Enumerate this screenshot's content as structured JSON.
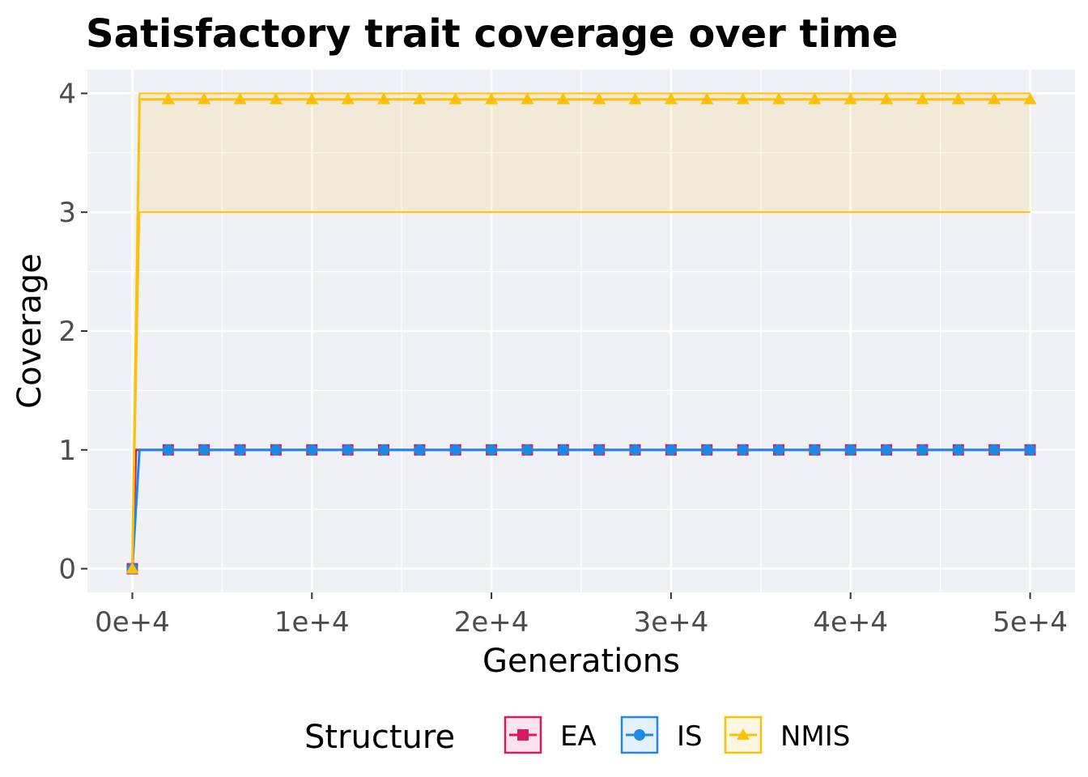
{
  "chart_data": {
    "type": "line",
    "title": "Satisfactory trait coverage over time",
    "xlabel": "Generations",
    "ylabel": "Coverage",
    "xlim": [
      -2500,
      52500
    ],
    "ylim": [
      -0.2,
      4.2
    ],
    "x_ticks": [
      0,
      10000,
      20000,
      30000,
      40000,
      50000
    ],
    "x_tick_labels": [
      "0e+4",
      "1e+4",
      "2e+4",
      "3e+4",
      "4e+4",
      "5e+4"
    ],
    "y_ticks": [
      0,
      1,
      2,
      3,
      4
    ],
    "y_tick_labels": [
      "0",
      "1",
      "2",
      "3",
      "4"
    ],
    "grid": true,
    "legend_title": "Structure",
    "legend_position": "bottom",
    "series": [
      {
        "name": "EA",
        "color": "#d81b60",
        "marker": "square",
        "line": [
          [
            0,
            0
          ],
          [
            200,
            1
          ],
          [
            50000,
            1
          ]
        ],
        "band": [
          [
            0,
            0,
            0
          ],
          [
            200,
            1,
            1
          ],
          [
            50000,
            1,
            1
          ]
        ],
        "marker_x": [
          0,
          2000,
          4000,
          6000,
          8000,
          10000,
          12000,
          14000,
          16000,
          18000,
          20000,
          22000,
          24000,
          26000,
          28000,
          30000,
          32000,
          34000,
          36000,
          38000,
          40000,
          42000,
          44000,
          46000,
          48000,
          50000
        ],
        "marker_y": [
          0,
          1,
          1,
          1,
          1,
          1,
          1,
          1,
          1,
          1,
          1,
          1,
          1,
          1,
          1,
          1,
          1,
          1,
          1,
          1,
          1,
          1,
          1,
          1,
          1,
          1
        ]
      },
      {
        "name": "IS",
        "color": "#1e88e5",
        "marker": "circle",
        "line": [
          [
            0,
            0
          ],
          [
            400,
            1
          ],
          [
            50000,
            1
          ]
        ],
        "band": [
          [
            0,
            0,
            0
          ],
          [
            400,
            1,
            1
          ],
          [
            50000,
            1,
            1
          ]
        ],
        "marker_x": [
          0,
          2000,
          4000,
          6000,
          8000,
          10000,
          12000,
          14000,
          16000,
          18000,
          20000,
          22000,
          24000,
          26000,
          28000,
          30000,
          32000,
          34000,
          36000,
          38000,
          40000,
          42000,
          44000,
          46000,
          48000,
          50000
        ],
        "marker_y": [
          0,
          1,
          1,
          1,
          1,
          1,
          1,
          1,
          1,
          1,
          1,
          1,
          1,
          1,
          1,
          1,
          1,
          1,
          1,
          1,
          1,
          1,
          1,
          1,
          1,
          1
        ]
      },
      {
        "name": "NMIS",
        "color": "#ffc107",
        "marker": "triangle",
        "line": [
          [
            0,
            0
          ],
          [
            400,
            3.95
          ],
          [
            50000,
            3.95
          ]
        ],
        "band": [
          [
            0,
            0,
            0
          ],
          [
            400,
            3,
            4
          ],
          [
            50000,
            3,
            4
          ]
        ],
        "marker_x": [
          0,
          2000,
          4000,
          6000,
          8000,
          10000,
          12000,
          14000,
          16000,
          18000,
          20000,
          22000,
          24000,
          26000,
          28000,
          30000,
          32000,
          34000,
          36000,
          38000,
          40000,
          42000,
          44000,
          46000,
          48000,
          50000
        ],
        "marker_y": [
          0,
          3.95,
          3.95,
          3.95,
          3.95,
          3.95,
          3.95,
          3.95,
          3.95,
          3.95,
          3.95,
          3.95,
          3.95,
          3.95,
          3.95,
          3.95,
          3.95,
          3.95,
          3.95,
          3.95,
          3.95,
          3.95,
          3.95,
          3.95,
          3.95,
          3.95
        ]
      }
    ]
  }
}
